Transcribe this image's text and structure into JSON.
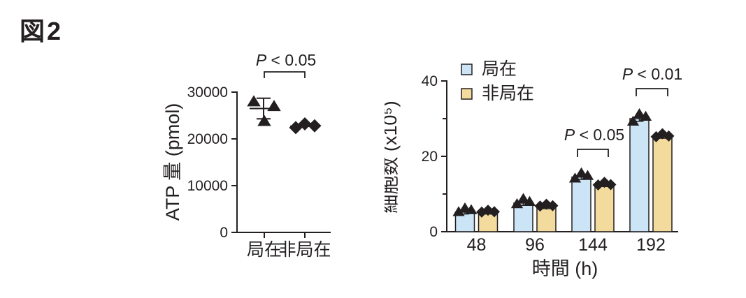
{
  "figure": {
    "title": "図2"
  },
  "colors": {
    "ink": "#231f20",
    "background": "#ffffff",
    "localized_fill": "#cbe5f6",
    "nonlocalized_fill": "#f3db9d"
  },
  "chart_data": [
    {
      "type": "scatter",
      "title": "",
      "xlabel": "",
      "ylabel": "ATP 量 (pmol)",
      "ylim": [
        0,
        30000
      ],
      "yticks": [
        0,
        10000,
        20000,
        30000
      ],
      "categories": [
        "局在",
        "非局在"
      ],
      "groups": [
        {
          "label": "局在",
          "marker": "triangle",
          "values": [
            28000,
            23800,
            27000
          ],
          "mean": 26500,
          "error_top": 28700,
          "error_bottom": 24300
        },
        {
          "label": "非局在",
          "marker": "diamond",
          "values": [
            22400,
            23200,
            22800
          ],
          "mean": 22700
        }
      ],
      "significance": [
        {
          "between": [
            "局在",
            "非局在"
          ],
          "label": "P < 0.05"
        }
      ]
    },
    {
      "type": "bar",
      "title": "",
      "xlabel": "時間 (h)",
      "ylabel": "細胞数 (x10⁵)",
      "ylim": [
        0,
        40
      ],
      "yticks": [
        0,
        20,
        40
      ],
      "minor_yticks": [
        10,
        30
      ],
      "categories": [
        "48",
        "96",
        "144",
        "192"
      ],
      "legend_position": "top-left",
      "series": [
        {
          "name": "局在",
          "marker": "triangle",
          "color": "#cbe5f6",
          "values": [
            5.2,
            7.6,
            14.5,
            30.0
          ],
          "points": [
            [
              5.3,
              6.3,
              5.8
            ],
            [
              7.4,
              8.8,
              8.0
            ],
            [
              14.2,
              15.6,
              14.9
            ],
            [
              29.3,
              31.3,
              30.6
            ]
          ],
          "sd": [
            0.5,
            0.6,
            0.6,
            0.7
          ]
        },
        {
          "name": "非局在",
          "marker": "diamond",
          "color": "#f3db9d",
          "values": [
            5.0,
            6.4,
            12.4,
            25.3
          ],
          "points": [
            [
              5.2,
              5.7,
              5.3
            ],
            [
              6.8,
              7.3,
              6.9
            ],
            [
              12.4,
              13.1,
              12.5
            ],
            [
              25.2,
              26.0,
              25.4
            ]
          ],
          "sd": [
            0.3,
            0.3,
            0.4,
            0.5
          ]
        }
      ],
      "significance": [
        {
          "category": "144",
          "label": "P < 0.05"
        },
        {
          "category": "192",
          "label": "P < 0.01"
        }
      ]
    }
  ]
}
